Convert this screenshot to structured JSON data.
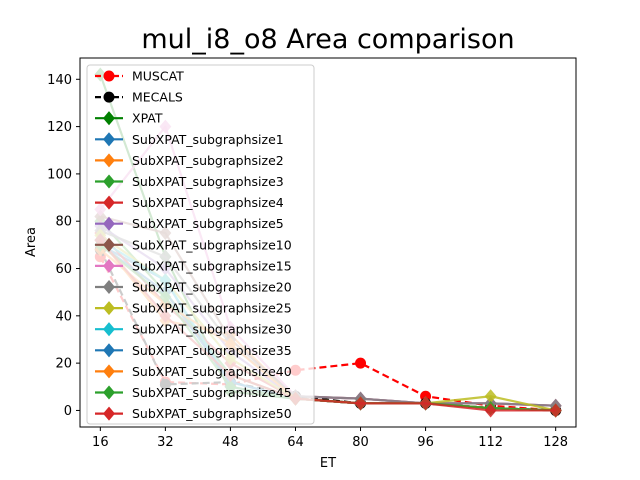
{
  "chart_data": {
    "type": "line",
    "title": "mul_i8_o8 Area comparison",
    "xlabel": "ET",
    "ylabel": "Area",
    "x": [
      16,
      32,
      48,
      64,
      80,
      96,
      112,
      128
    ],
    "xticks": [
      "16",
      "32",
      "48",
      "64",
      "80",
      "96",
      "112",
      "128"
    ],
    "yticks": [
      "0",
      "20",
      "40",
      "60",
      "80",
      "100",
      "120",
      "140"
    ],
    "xlim": [
      11,
      133
    ],
    "ylim": [
      -7,
      149
    ],
    "grid": false,
    "legend_position": "upper-left",
    "series": [
      {
        "name": "MUSCAT",
        "color": "#ff0000",
        "marker": "circle",
        "dash": "dashed",
        "values": [
          65,
          12,
          11,
          17,
          20,
          6,
          2,
          0
        ]
      },
      {
        "name": "MECALS",
        "color": "#000000",
        "marker": "circle",
        "dash": "dashed",
        "values": [
          68,
          11,
          12,
          6,
          3,
          3,
          1,
          0
        ]
      },
      {
        "name": "XPAT",
        "color": "#008000",
        "marker": "diamond",
        "dash": "solid",
        "values": [
          142,
          65,
          8,
          5,
          3,
          3,
          1,
          0
        ]
      },
      {
        "name": "SubXPAT_subgraphsize1",
        "color": "#1f77b4",
        "marker": "diamond",
        "dash": "solid",
        "values": [
          70,
          55,
          10,
          5,
          3,
          3,
          1,
          0
        ]
      },
      {
        "name": "SubXPAT_subgraphsize2",
        "color": "#ff7f0e",
        "marker": "diamond",
        "dash": "solid",
        "values": [
          72,
          38,
          32,
          5,
          3,
          3,
          1,
          0
        ]
      },
      {
        "name": "SubXPAT_subgraphsize3",
        "color": "#2ca02c",
        "marker": "diamond",
        "dash": "solid",
        "values": [
          80,
          50,
          15,
          5,
          3,
          3,
          1,
          0
        ]
      },
      {
        "name": "SubXPAT_subgraphsize4",
        "color": "#d62728",
        "marker": "diamond",
        "dash": "solid",
        "values": [
          75,
          45,
          20,
          5,
          3,
          3,
          1,
          0
        ]
      },
      {
        "name": "SubXPAT_subgraphsize5",
        "color": "#9467bd",
        "marker": "diamond",
        "dash": "solid",
        "values": [
          78,
          60,
          25,
          5,
          3,
          3,
          1,
          0
        ]
      },
      {
        "name": "SubXPAT_subgraphsize10",
        "color": "#8c564b",
        "marker": "diamond",
        "dash": "solid",
        "values": [
          82,
          75,
          30,
          6,
          5,
          3,
          3,
          2
        ]
      },
      {
        "name": "SubXPAT_subgraphsize15",
        "color": "#e377c2",
        "marker": "diamond",
        "dash": "solid",
        "values": [
          85,
          120,
          35,
          6,
          5,
          3,
          3,
          2
        ]
      },
      {
        "name": "SubXPAT_subgraphsize20",
        "color": "#7f7f7f",
        "marker": "diamond",
        "dash": "solid",
        "values": [
          76,
          65,
          28,
          6,
          5,
          3,
          3,
          2
        ]
      },
      {
        "name": "SubXPAT_subgraphsize25",
        "color": "#bcbd22",
        "marker": "diamond",
        "dash": "solid",
        "values": [
          74,
          55,
          22,
          5,
          3,
          3,
          6,
          0
        ]
      },
      {
        "name": "SubXPAT_subgraphsize30",
        "color": "#17becf",
        "marker": "diamond",
        "dash": "solid",
        "values": [
          72,
          55,
          12,
          5,
          3,
          3,
          1,
          0
        ]
      },
      {
        "name": "SubXPAT_subgraphsize35",
        "color": "#1f77b4",
        "marker": "diamond",
        "dash": "solid",
        "values": [
          70,
          50,
          12,
          5,
          3,
          3,
          1,
          0
        ]
      },
      {
        "name": "SubXPAT_subgraphsize40",
        "color": "#ff7f0e",
        "marker": "diamond",
        "dash": "solid",
        "values": [
          68,
          45,
          28,
          5,
          3,
          3,
          1,
          0
        ]
      },
      {
        "name": "SubXPAT_subgraphsize45",
        "color": "#2ca02c",
        "marker": "diamond",
        "dash": "solid",
        "values": [
          70,
          48,
          10,
          5,
          3,
          3,
          1,
          0
        ]
      },
      {
        "name": "SubXPAT_subgraphsize50",
        "color": "#d62728",
        "marker": "diamond",
        "dash": "solid",
        "values": [
          72,
          40,
          15,
          5,
          3,
          3,
          0,
          0
        ]
      }
    ]
  }
}
